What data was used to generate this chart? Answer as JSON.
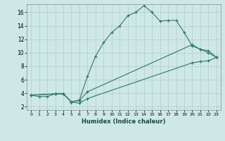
{
  "xlabel": "Humidex (Indice chaleur)",
  "bg_color": "#cde8e6",
  "grid_color": "#b0cccc",
  "line_color": "#2d7a6a",
  "xlim": [
    -0.5,
    23.5
  ],
  "ylim": [
    1.5,
    17.2
  ],
  "xticks": [
    0,
    1,
    2,
    3,
    4,
    5,
    6,
    7,
    8,
    9,
    10,
    11,
    12,
    13,
    14,
    15,
    16,
    17,
    18,
    19,
    20,
    21,
    22,
    23
  ],
  "yticks": [
    2,
    4,
    6,
    8,
    10,
    12,
    14,
    16
  ],
  "curve1_x": [
    0,
    1,
    2,
    3,
    4,
    5,
    6,
    7,
    8,
    9,
    10,
    11,
    12,
    13,
    14,
    15,
    16,
    17,
    18,
    19,
    20,
    21,
    22,
    23
  ],
  "curve1_y": [
    3.7,
    3.5,
    3.5,
    3.9,
    3.9,
    2.7,
    3.0,
    6.5,
    9.5,
    11.5,
    13.0,
    14.0,
    15.5,
    16.0,
    17.0,
    16.0,
    14.7,
    14.8,
    14.8,
    13.0,
    11.0,
    10.5,
    10.0,
    9.3
  ],
  "curve2_x": [
    0,
    3,
    4,
    5,
    6,
    7,
    20,
    21,
    22,
    23
  ],
  "curve2_y": [
    3.7,
    3.9,
    3.9,
    2.7,
    2.9,
    4.2,
    11.2,
    10.5,
    10.3,
    9.3
  ],
  "curve3_x": [
    0,
    3,
    4,
    5,
    6,
    7,
    20,
    21,
    22,
    23
  ],
  "curve3_y": [
    3.7,
    3.9,
    3.9,
    2.7,
    2.5,
    3.2,
    8.5,
    8.7,
    8.8,
    9.3
  ]
}
